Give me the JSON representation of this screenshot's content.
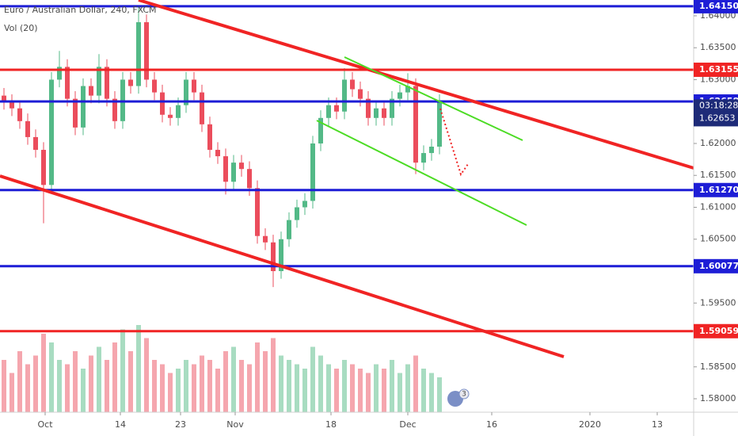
{
  "chart_data": {
    "type": "candlestick",
    "title": "Euro / Australian Dollar, 240, FXCM",
    "volume_label": "Vol (20)",
    "events_badge": "3",
    "categories": [
      null,
      null,
      null,
      null,
      null,
      null,
      null,
      null,
      null,
      null,
      null,
      null,
      null,
      null,
      null,
      null,
      null,
      null,
      null,
      null,
      null,
      null,
      null,
      null,
      null,
      null,
      null,
      null,
      null,
      null,
      null,
      null,
      null,
      null,
      null,
      null,
      null,
      null,
      null,
      null,
      null,
      null,
      null,
      null,
      null,
      null,
      null,
      null,
      null,
      null,
      null,
      null,
      null,
      null,
      null,
      null
    ],
    "open": [
      1.6275,
      1.6265,
      1.6255,
      1.6235,
      1.621,
      1.619,
      1.6135,
      1.63,
      1.632,
      1.627,
      1.6225,
      1.629,
      1.6275,
      1.632,
      1.627,
      1.6235,
      1.63,
      1.629,
      1.639,
      1.63,
      1.628,
      1.6245,
      1.624,
      1.626,
      1.63,
      1.628,
      1.623,
      1.619,
      1.618,
      1.614,
      1.617,
      1.616,
      1.613,
      1.6055,
      1.6045,
      1.6,
      1.605,
      1.608,
      1.61,
      1.611,
      1.62,
      1.624,
      1.626,
      1.625,
      1.63,
      1.6285,
      1.627,
      1.624,
      1.6255,
      1.624,
      1.627,
      1.628,
      1.629,
      1.617,
      1.6185,
      1.6195
    ],
    "high": [
      1.6287,
      1.6277,
      1.6267,
      1.6247,
      1.6222,
      1.6202,
      1.6312,
      1.6345,
      1.6332,
      1.6282,
      1.6302,
      1.6302,
      1.634,
      1.6332,
      1.6282,
      1.6312,
      1.6312,
      1.6413,
      1.6402,
      1.6312,
      1.6292,
      1.6257,
      1.6272,
      1.6312,
      1.6312,
      1.6292,
      1.6242,
      1.6202,
      1.6192,
      1.6182,
      1.6182,
      1.6172,
      1.6142,
      1.6067,
      1.6057,
      1.6062,
      1.6092,
      1.6112,
      1.6122,
      1.6212,
      1.6252,
      1.6272,
      1.6272,
      1.6318,
      1.6312,
      1.6297,
      1.6282,
      1.6267,
      1.6267,
      1.6282,
      1.6292,
      1.631,
      1.6302,
      1.6197,
      1.6207,
      1.6277
    ],
    "low": [
      1.6253,
      1.6243,
      1.6223,
      1.6198,
      1.6178,
      1.6075,
      1.6123,
      1.6288,
      1.6258,
      1.6213,
      1.6213,
      1.6263,
      1.6263,
      1.6258,
      1.6223,
      1.6223,
      1.6278,
      1.6278,
      1.6288,
      1.6268,
      1.6233,
      1.6228,
      1.6228,
      1.6248,
      1.6268,
      1.6218,
      1.6178,
      1.6168,
      1.612,
      1.6128,
      1.6148,
      1.6118,
      1.6043,
      1.6033,
      1.5975,
      1.5988,
      1.6038,
      1.6068,
      1.6088,
      1.6098,
      1.6188,
      1.6228,
      1.6238,
      1.6238,
      1.6273,
      1.6258,
      1.6228,
      1.6228,
      1.6228,
      1.6228,
      1.6258,
      1.6268,
      1.6152,
      1.6158,
      1.6173,
      1.6183
    ],
    "close": [
      1.6265,
      1.6255,
      1.6235,
      1.621,
      1.619,
      1.6135,
      1.63,
      1.632,
      1.627,
      1.6225,
      1.629,
      1.6275,
      1.632,
      1.627,
      1.6235,
      1.63,
      1.629,
      1.639,
      1.63,
      1.628,
      1.6245,
      1.624,
      1.626,
      1.63,
      1.628,
      1.623,
      1.619,
      1.618,
      1.614,
      1.617,
      1.616,
      1.613,
      1.6055,
      1.6045,
      1.6,
      1.605,
      1.608,
      1.61,
      1.611,
      1.62,
      1.624,
      1.626,
      1.625,
      1.63,
      1.6285,
      1.627,
      1.624,
      1.6255,
      1.624,
      1.627,
      1.628,
      1.629,
      1.617,
      1.6185,
      1.6195,
      1.6265
    ],
    "volume": [
      60,
      45,
      70,
      55,
      65,
      90,
      80,
      60,
      55,
      70,
      50,
      65,
      75,
      60,
      80,
      95,
      70,
      100,
      85,
      60,
      55,
      45,
      50,
      60,
      55,
      65,
      60,
      50,
      70,
      75,
      60,
      55,
      80,
      70,
      85,
      65,
      60,
      55,
      50,
      75,
      65,
      55,
      50,
      60,
      55,
      50,
      45,
      55,
      50,
      60,
      45,
      55,
      65,
      50,
      45,
      40
    ],
    "up_color": "#53b987",
    "down_color": "#eb4d5c",
    "up_volume_color": "#a8dcc1",
    "down_volume_color": "#f5a6ae",
    "xlim": [
      -0.5,
      87.1
    ],
    "xticks": [
      {
        "value": 5.2,
        "label": "Oct"
      },
      {
        "value": 14.7,
        "label": "14"
      },
      {
        "value": 22.3,
        "label": "23"
      },
      {
        "value": 29.2,
        "label": "Nov"
      },
      {
        "value": 41.3,
        "label": "18"
      },
      {
        "value": 51,
        "label": "Dec"
      },
      {
        "value": 61.6,
        "label": "16"
      },
      {
        "value": 74,
        "label": "2020"
      },
      {
        "value": 82.5,
        "label": "13"
      }
    ],
    "ylim": [
      1.57789,
      1.64248
    ],
    "yticks": [
      {
        "value": 1.64,
        "label": "1.64000"
      },
      {
        "value": 1.635,
        "label": "1.63500"
      },
      {
        "value": 1.63,
        "label": "1.63000"
      },
      {
        "value": 1.62,
        "label": "1.62000"
      },
      {
        "value": 1.615,
        "label": "1.61500"
      },
      {
        "value": 1.61,
        "label": "1.61000"
      },
      {
        "value": 1.605,
        "label": "1.60500"
      },
      {
        "value": 1.595,
        "label": "1.59500"
      },
      {
        "value": 1.585,
        "label": "1.58500"
      },
      {
        "value": 1.58,
        "label": "1.58000"
      }
    ],
    "grid": false,
    "levels": [
      {
        "value": 1.6415,
        "label": "1.64150",
        "color": "#1d1dd6"
      },
      {
        "value": 1.63155,
        "label": "1.63155",
        "color": "#f02424"
      },
      {
        "value": 1.62658,
        "label": "1.62658",
        "color": "#1d1dd6"
      },
      {
        "value": 1.6127,
        "label": "1.61270",
        "color": "#1d1dd6"
      },
      {
        "value": 1.60077,
        "label": "1.60077",
        "color": "#1d1dd6"
      },
      {
        "value": 1.59059,
        "label": "1.59059",
        "color": "#f02424"
      }
    ],
    "last_price": {
      "value": 1.62653,
      "label": "1.62653"
    },
    "countdown": "03:18:28"
  }
}
